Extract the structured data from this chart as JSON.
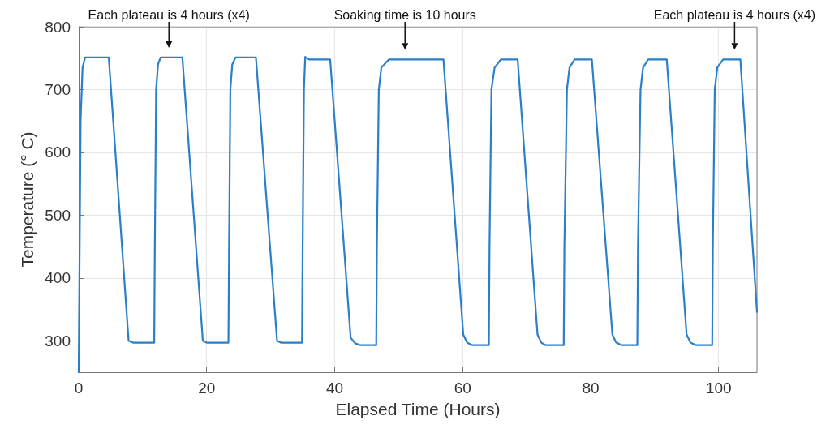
{
  "chart_data": {
    "type": "line",
    "xlabel": "Elapsed Time (Hours)",
    "ylabel": "Temperature (° C)",
    "xlim": [
      0,
      106
    ],
    "xticks": [
      0,
      20,
      40,
      60,
      80,
      100
    ],
    "ylim": [
      250,
      800
    ],
    "yticks": [
      300,
      400,
      500,
      600,
      700,
      800
    ],
    "grid": true,
    "marker": "none",
    "line_style": "solid",
    "annotations": [
      {
        "text": "Each plateau is 4 hours (x4)",
        "x": 14.1,
        "y": 751
      },
      {
        "text": "Soaking time is 10 hours",
        "x": 51,
        "y": 748
      },
      {
        "text": "Each plateau is 4 hours (x4)",
        "x": 102.5,
        "y": 748
      }
    ],
    "series": [
      {
        "color": "#2a7fc9",
        "x": [
          0,
          0.3,
          0.6,
          1,
          4.7,
          7.8,
          8.5,
          11.8,
          11.9,
          12.1,
          12.4,
          12.8,
          16.2,
          19.4,
          20,
          23.4,
          23.5,
          23.7,
          24,
          24.5,
          27.7,
          31,
          31.6,
          34.9,
          35,
          35.2,
          35.4,
          36,
          39.3,
          42.5,
          43.2,
          44,
          46.5,
          46.6,
          46.9,
          47.3,
          48.5,
          57,
          60.1,
          60.7,
          61.5,
          64.1,
          64.2,
          64.5,
          65,
          66,
          68.6,
          71.7,
          72.3,
          73,
          75.8,
          75.9,
          76.3,
          76.7,
          77.5,
          80.2,
          83.4,
          84,
          84.9,
          87.3,
          87.4,
          87.8,
          88.2,
          89,
          91.9,
          95,
          95.6,
          96.5,
          99,
          99.1,
          99.4,
          99.8,
          100.7,
          103.4,
          106
        ],
        "values": [
          250,
          650,
          735,
          751,
          751,
          300,
          297,
          297,
          450,
          700,
          740,
          751,
          751,
          300,
          297,
          297,
          450,
          700,
          740,
          751,
          751,
          300,
          297,
          297,
          450,
          700,
          752,
          748,
          748,
          305,
          296,
          293,
          293,
          450,
          700,
          735,
          748,
          748,
          310,
          297,
          293,
          293,
          450,
          700,
          735,
          748,
          748,
          310,
          297,
          293,
          293,
          450,
          700,
          735,
          748,
          748,
          310,
          297,
          293,
          293,
          450,
          700,
          735,
          748,
          748,
          310,
          297,
          293,
          293,
          450,
          700,
          735,
          748,
          748,
          346
        ]
      }
    ]
  }
}
